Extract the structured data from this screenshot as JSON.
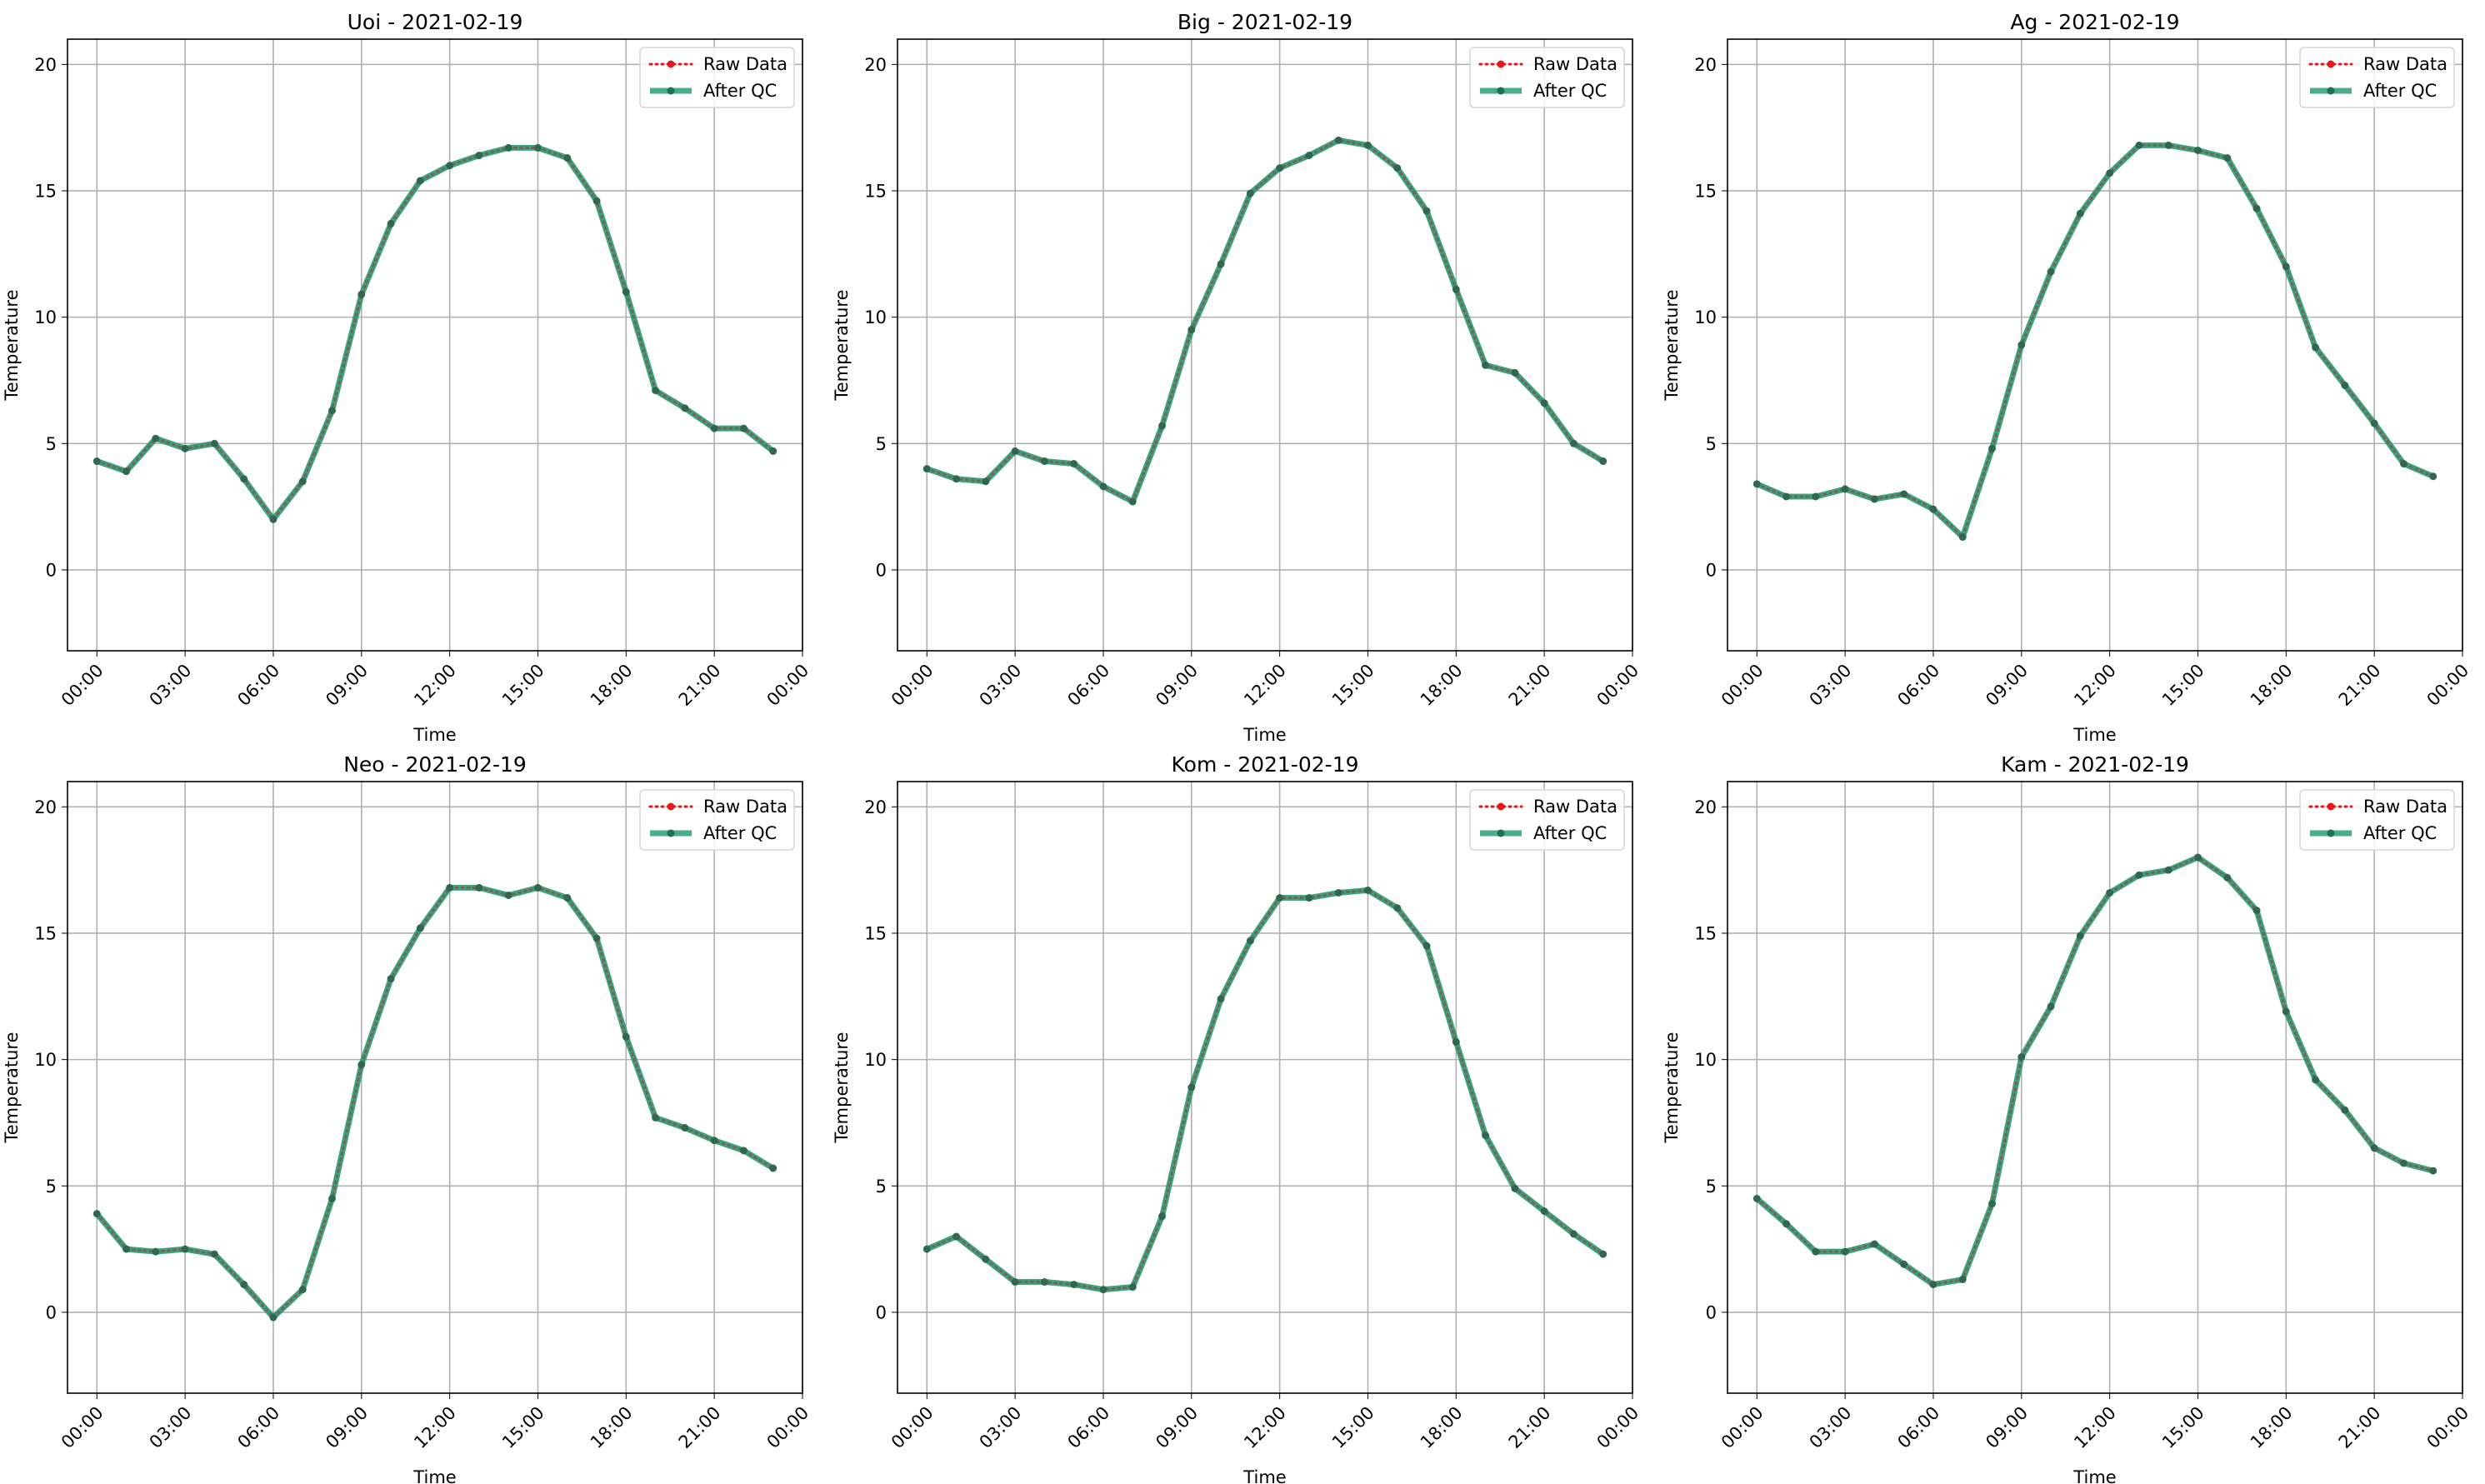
{
  "chart_data": [
    {
      "type": "line",
      "title": "Uoi - 2021-02-19",
      "xlabel": "Time",
      "ylabel": "Temperature",
      "xlim": [
        "2021-02-18 23:00",
        "2021-02-20 00:00"
      ],
      "ylim": [
        -3.2,
        21
      ],
      "x_ticks": [
        "00:00",
        "03:00",
        "06:00",
        "09:00",
        "12:00",
        "15:00",
        "18:00",
        "21:00",
        "00:00"
      ],
      "y_ticks": [
        "0",
        "5",
        "10",
        "15",
        "20"
      ],
      "grid": true,
      "legend_placement": "top-right",
      "x": [
        "00:00",
        "01:00",
        "02:00",
        "03:00",
        "04:00",
        "05:00",
        "06:00",
        "07:00",
        "08:00",
        "09:00",
        "10:00",
        "11:00",
        "12:00",
        "13:00",
        "14:00",
        "15:00",
        "16:00",
        "17:00",
        "18:00",
        "19:00",
        "20:00",
        "21:00",
        "22:00",
        "23:00"
      ],
      "series": [
        {
          "name": "Raw Data",
          "color": "#e31a1c",
          "style": "dotted",
          "values": [
            4.3,
            3.9,
            5.2,
            4.8,
            5.0,
            3.6,
            2.0,
            3.5,
            6.3,
            10.9,
            13.7,
            15.4,
            16.0,
            16.4,
            16.7,
            16.7,
            16.3,
            14.6,
            11.0,
            7.1,
            6.4,
            5.6,
            5.6,
            4.7
          ]
        },
        {
          "name": "After QC",
          "color": "#2a9d78",
          "style": "solid",
          "values": [
            4.3,
            3.9,
            5.2,
            4.8,
            5.0,
            3.6,
            2.0,
            3.5,
            6.3,
            10.9,
            13.7,
            15.4,
            16.0,
            16.4,
            16.7,
            16.7,
            16.3,
            14.6,
            11.0,
            7.1,
            6.4,
            5.6,
            5.6,
            4.7
          ]
        }
      ]
    },
    {
      "type": "line",
      "title": "Big - 2021-02-19",
      "xlabel": "Time",
      "ylabel": "Temperature",
      "xlim": [
        "2021-02-18 23:00",
        "2021-02-20 00:00"
      ],
      "ylim": [
        -3.2,
        21
      ],
      "x_ticks": [
        "00:00",
        "03:00",
        "06:00",
        "09:00",
        "12:00",
        "15:00",
        "18:00",
        "21:00",
        "00:00"
      ],
      "y_ticks": [
        "0",
        "5",
        "10",
        "15",
        "20"
      ],
      "grid": true,
      "legend_placement": "top-right",
      "x": [
        "00:00",
        "01:00",
        "02:00",
        "03:00",
        "04:00",
        "05:00",
        "06:00",
        "07:00",
        "08:00",
        "09:00",
        "10:00",
        "11:00",
        "12:00",
        "13:00",
        "14:00",
        "15:00",
        "16:00",
        "17:00",
        "18:00",
        "19:00",
        "20:00",
        "21:00",
        "22:00",
        "23:00"
      ],
      "series": [
        {
          "name": "Raw Data",
          "color": "#e31a1c",
          "style": "dotted",
          "values": [
            4.0,
            3.6,
            3.5,
            4.7,
            4.3,
            4.2,
            3.3,
            2.7,
            5.7,
            9.5,
            12.1,
            14.9,
            15.9,
            16.4,
            17.0,
            16.8,
            15.9,
            14.2,
            11.1,
            8.1,
            7.8,
            6.6,
            5.0,
            4.3
          ]
        },
        {
          "name": "After QC",
          "color": "#2a9d78",
          "style": "solid",
          "values": [
            4.0,
            3.6,
            3.5,
            4.7,
            4.3,
            4.2,
            3.3,
            2.7,
            5.7,
            9.5,
            12.1,
            14.9,
            15.9,
            16.4,
            17.0,
            16.8,
            15.9,
            14.2,
            11.1,
            8.1,
            7.8,
            6.6,
            5.0,
            4.3
          ]
        }
      ]
    },
    {
      "type": "line",
      "title": "Ag - 2021-02-19",
      "xlabel": "Time",
      "ylabel": "Temperature",
      "xlim": [
        "2021-02-18 23:00",
        "2021-02-20 00:00"
      ],
      "ylim": [
        -3.2,
        21
      ],
      "x_ticks": [
        "00:00",
        "03:00",
        "06:00",
        "09:00",
        "12:00",
        "15:00",
        "18:00",
        "21:00",
        "00:00"
      ],
      "y_ticks": [
        "0",
        "5",
        "10",
        "15",
        "20"
      ],
      "grid": true,
      "legend_placement": "top-right",
      "x": [
        "00:00",
        "01:00",
        "02:00",
        "03:00",
        "04:00",
        "05:00",
        "06:00",
        "07:00",
        "08:00",
        "09:00",
        "10:00",
        "11:00",
        "12:00",
        "13:00",
        "14:00",
        "15:00",
        "16:00",
        "17:00",
        "18:00",
        "19:00",
        "20:00",
        "21:00",
        "22:00",
        "23:00"
      ],
      "series": [
        {
          "name": "Raw Data",
          "color": "#e31a1c",
          "style": "dotted",
          "values": [
            3.4,
            2.9,
            2.9,
            3.2,
            2.8,
            3.0,
            2.4,
            1.3,
            4.8,
            8.9,
            11.8,
            14.1,
            15.7,
            16.8,
            16.8,
            16.6,
            16.3,
            14.3,
            12.0,
            8.8,
            7.3,
            5.8,
            4.2,
            3.7
          ]
        },
        {
          "name": "After QC",
          "color": "#2a9d78",
          "style": "solid",
          "values": [
            3.4,
            2.9,
            2.9,
            3.2,
            2.8,
            3.0,
            2.4,
            1.3,
            4.8,
            8.9,
            11.8,
            14.1,
            15.7,
            16.8,
            16.8,
            16.6,
            16.3,
            14.3,
            12.0,
            8.8,
            7.3,
            5.8,
            4.2,
            3.7
          ]
        }
      ]
    },
    {
      "type": "line",
      "title": "Neo - 2021-02-19",
      "xlabel": "Time",
      "ylabel": "Temperature",
      "xlim": [
        "2021-02-18 23:00",
        "2021-02-20 00:00"
      ],
      "ylim": [
        -3.2,
        21
      ],
      "x_ticks": [
        "00:00",
        "03:00",
        "06:00",
        "09:00",
        "12:00",
        "15:00",
        "18:00",
        "21:00",
        "00:00"
      ],
      "y_ticks": [
        "0",
        "5",
        "10",
        "15",
        "20"
      ],
      "grid": true,
      "legend_placement": "top-right",
      "x": [
        "00:00",
        "01:00",
        "02:00",
        "03:00",
        "04:00",
        "05:00",
        "06:00",
        "07:00",
        "08:00",
        "09:00",
        "10:00",
        "11:00",
        "12:00",
        "13:00",
        "14:00",
        "15:00",
        "16:00",
        "17:00",
        "18:00",
        "19:00",
        "20:00",
        "21:00",
        "22:00",
        "23:00"
      ],
      "series": [
        {
          "name": "Raw Data",
          "color": "#e31a1c",
          "style": "dotted",
          "values": [
            3.9,
            2.5,
            2.4,
            2.5,
            2.3,
            1.1,
            -0.2,
            0.9,
            4.5,
            9.8,
            13.2,
            15.2,
            16.8,
            16.8,
            16.5,
            16.8,
            16.4,
            14.8,
            10.9,
            7.7,
            7.3,
            6.8,
            6.4,
            5.7
          ]
        },
        {
          "name": "After QC",
          "color": "#2a9d78",
          "style": "solid",
          "values": [
            3.9,
            2.5,
            2.4,
            2.5,
            2.3,
            1.1,
            -0.2,
            0.9,
            4.5,
            9.8,
            13.2,
            15.2,
            16.8,
            16.8,
            16.5,
            16.8,
            16.4,
            14.8,
            10.9,
            7.7,
            7.3,
            6.8,
            6.4,
            5.7
          ]
        }
      ]
    },
    {
      "type": "line",
      "title": "Kom - 2021-02-19",
      "xlabel": "Time",
      "ylabel": "Temperature",
      "xlim": [
        "2021-02-18 23:00",
        "2021-02-20 00:00"
      ],
      "ylim": [
        -3.2,
        21
      ],
      "x_ticks": [
        "00:00",
        "03:00",
        "06:00",
        "09:00",
        "12:00",
        "15:00",
        "18:00",
        "21:00",
        "00:00"
      ],
      "y_ticks": [
        "0",
        "5",
        "10",
        "15",
        "20"
      ],
      "grid": true,
      "legend_placement": "top-right",
      "x": [
        "00:00",
        "01:00",
        "02:00",
        "03:00",
        "04:00",
        "05:00",
        "06:00",
        "07:00",
        "08:00",
        "09:00",
        "10:00",
        "11:00",
        "12:00",
        "13:00",
        "14:00",
        "15:00",
        "16:00",
        "17:00",
        "18:00",
        "19:00",
        "20:00",
        "21:00",
        "22:00",
        "23:00"
      ],
      "series": [
        {
          "name": "Raw Data",
          "color": "#e31a1c",
          "style": "dotted",
          "values": [
            2.5,
            3.0,
            2.1,
            1.2,
            1.2,
            1.1,
            0.9,
            1.0,
            3.8,
            8.9,
            12.4,
            14.7,
            16.4,
            16.4,
            16.6,
            16.7,
            16.0,
            14.5,
            10.7,
            7.0,
            4.9,
            4.0,
            3.1,
            2.3
          ]
        },
        {
          "name": "After QC",
          "color": "#2a9d78",
          "style": "solid",
          "values": [
            2.5,
            3.0,
            2.1,
            1.2,
            1.2,
            1.1,
            0.9,
            1.0,
            3.8,
            8.9,
            12.4,
            14.7,
            16.4,
            16.4,
            16.6,
            16.7,
            16.0,
            14.5,
            10.7,
            7.0,
            4.9,
            4.0,
            3.1,
            2.3
          ]
        }
      ]
    },
    {
      "type": "line",
      "title": "Kam - 2021-02-19",
      "xlabel": "Time",
      "ylabel": "Temperature",
      "xlim": [
        "2021-02-18 23:00",
        "2021-02-20 00:00"
      ],
      "ylim": [
        -3.2,
        21
      ],
      "x_ticks": [
        "00:00",
        "03:00",
        "06:00",
        "09:00",
        "12:00",
        "15:00",
        "18:00",
        "21:00",
        "00:00"
      ],
      "y_ticks": [
        "0",
        "5",
        "10",
        "15",
        "20"
      ],
      "grid": true,
      "legend_placement": "top-right",
      "x": [
        "00:00",
        "01:00",
        "02:00",
        "03:00",
        "04:00",
        "05:00",
        "06:00",
        "07:00",
        "08:00",
        "09:00",
        "10:00",
        "11:00",
        "12:00",
        "13:00",
        "14:00",
        "15:00",
        "16:00",
        "17:00",
        "18:00",
        "19:00",
        "20:00",
        "21:00",
        "22:00",
        "23:00"
      ],
      "series": [
        {
          "name": "Raw Data",
          "color": "#e31a1c",
          "style": "dotted",
          "values": [
            4.5,
            3.5,
            2.4,
            2.4,
            2.7,
            1.9,
            1.1,
            1.3,
            4.3,
            10.1,
            12.1,
            14.9,
            16.6,
            17.3,
            17.5,
            18.0,
            17.2,
            15.9,
            11.9,
            9.2,
            8.0,
            6.5,
            5.9,
            5.6
          ]
        },
        {
          "name": "After QC",
          "color": "#2a9d78",
          "style": "solid",
          "values": [
            4.5,
            3.5,
            2.4,
            2.4,
            2.7,
            1.9,
            1.1,
            1.3,
            4.3,
            10.1,
            12.1,
            14.9,
            16.6,
            17.3,
            17.5,
            18.0,
            17.2,
            15.9,
            11.9,
            9.2,
            8.0,
            6.5,
            5.9,
            5.6
          ]
        }
      ]
    }
  ]
}
